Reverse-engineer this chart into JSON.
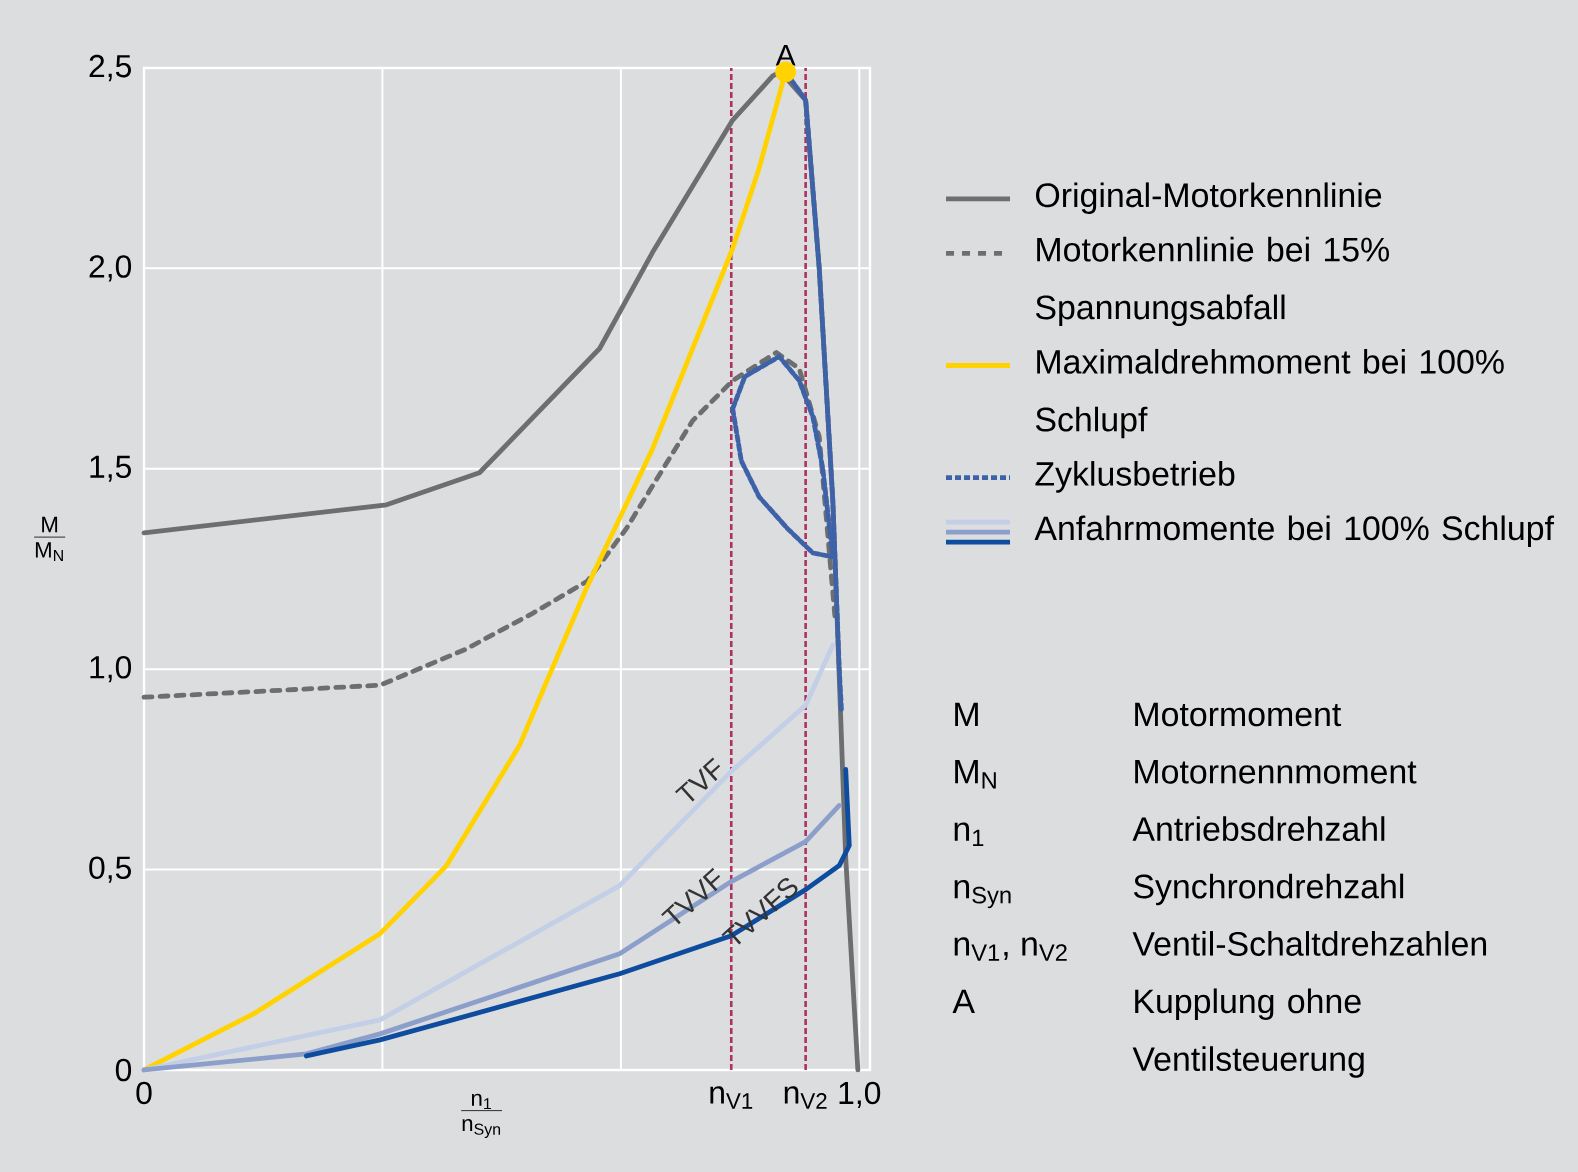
{
  "chart_data": {
    "type": "line",
    "xlabel": "\\frac{\\mathrm{n_1}}{\\mathrm{n_{Syn}}}",
    "ylabel": "\\frac{\\mathrm{M}}{\\mathrm{M_N}}",
    "xlim": [
      0,
      1.015
    ],
    "ylim": [
      0,
      2.5
    ],
    "xticks": [
      0,
      {
        "value": 0.3333,
        "label": null
      },
      {
        "value": 0.6667,
        "label": null
      },
      {
        "value": 1.0,
        "label": "1,0"
      }
    ],
    "yticks": [
      0,
      {
        "value": 0.5,
        "label": "0,5"
      },
      {
        "value": 1.0,
        "label": "1,0"
      },
      {
        "value": 1.5,
        "label": "1,5"
      },
      {
        "value": 2.0,
        "label": "2,0"
      },
      {
        "value": 2.5,
        "label": "2,5"
      }
    ],
    "grid": true,
    "legend": "right",
    "marker": "none",
    "series": [
      {
        "name": "Original-Motorkennlinie",
        "color": "#6d6e70",
        "line_style": "solid",
        "x": [
          0,
          0.339,
          0.469,
          0.637,
          0.711,
          0.823,
          0.879,
          0.89,
          0.925,
          0.944,
          0.963,
          0.972,
          0.981,
          0.998
        ],
        "values": [
          1.34,
          1.41,
          1.49,
          1.8,
          2.04,
          2.37,
          2.48,
          2.49,
          2.42,
          2.0,
          1.42,
          0.98,
          0.53,
          0
        ]
      },
      {
        "name": "Motorkennlinie bei 15% Spannungsabfall",
        "color": "#6d6e70",
        "line_style": "dotted",
        "x": [
          0,
          0.33,
          0.45,
          0.544,
          0.62,
          0.674,
          0.767,
          0.823,
          0.884,
          0.916,
          0.944,
          0.966
        ],
        "values": [
          0.93,
          0.96,
          1.05,
          1.14,
          1.22,
          1.35,
          1.62,
          1.72,
          1.79,
          1.75,
          1.58,
          1.13
        ]
      },
      {
        "name": "Maximaldrehmoment bei 100% Schlupf",
        "color": "#ffd200",
        "line_style": "solid",
        "x": [
          0,
          0.153,
          0.33,
          0.423,
          0.525,
          0.618,
          0.711,
          0.823,
          0.86,
          0.897
        ],
        "values": [
          0,
          0.14,
          0.34,
          0.51,
          0.81,
          1.2,
          1.55,
          2.05,
          2.25,
          2.49
        ]
      },
      {
        "name": "Zyklusbetrieb",
        "color": "#3e62a8",
        "line_style": "dashed",
        "x": [
          0.897,
          0.925,
          0.944,
          0.963,
          0.972,
          0.975
        ],
        "values": [
          2.49,
          2.42,
          2.0,
          1.42,
          1.0,
          0.9
        ]
      },
      {
        "color": "#3e62a8",
        "line_style": "dashed",
        "x": [
          0.823,
          0.84,
          0.888,
          0.916,
          0.935,
          0.949,
          0.963
        ],
        "values": [
          1.65,
          1.73,
          1.78,
          1.72,
          1.63,
          1.5,
          1.28
        ]
      },
      {
        "color": "#3e62a8",
        "line_style": "dashed",
        "x": [
          0.823,
          0.835,
          0.86,
          0.9,
          0.935,
          0.963
        ],
        "values": [
          1.65,
          1.52,
          1.43,
          1.35,
          1.29,
          1.28
        ]
      },
      {
        "name": "TVF",
        "color": "#c3cfe6",
        "line_style": "solid",
        "x": [
          0,
          0.33,
          0.665,
          0.821,
          0.925,
          0.963
        ],
        "values": [
          0,
          0.125,
          0.46,
          0.745,
          0.91,
          1.06
        ]
      },
      {
        "name": "TVVF",
        "color": "#8c9fcb",
        "line_style": "solid",
        "x": [
          0,
          0.227,
          0.33,
          0.665,
          0.821,
          0.925,
          0.972
        ],
        "values": [
          0,
          0.04,
          0.09,
          0.29,
          0.47,
          0.57,
          0.66
        ]
      },
      {
        "name": "TVVFS",
        "color": "#0d4c9e",
        "line_style": "solid",
        "x": [
          0.227,
          0.33,
          0.665,
          0.821,
          0.925,
          0.972,
          0.986,
          0.981
        ],
        "values": [
          0.035,
          0.075,
          0.24,
          0.335,
          0.45,
          0.51,
          0.56,
          0.75
        ]
      },
      {
        "type": "scatter",
        "marker": "circle",
        "color": "#ffd200",
        "x": [
          0.897
        ],
        "values": [
          2.49
        ]
      }
    ],
    "ref_lines": [
      {
        "axis": "x",
        "value": 0.821,
        "label": "n$_{V1}$",
        "color": "#b03060",
        "line_style": "dashed"
      },
      {
        "axis": "x",
        "value": 0.925,
        "label": "n$_{V2}$",
        "color": "#b03060",
        "line_style": "dashed"
      }
    ],
    "annotations": [
      {
        "text": "A",
        "x": 0.897,
        "y": 2.49
      },
      "Anfahrmomente bei 100% Schlupf",
      "M",
      "Motormoment",
      "M$_{N}$",
      "Motornennmoment",
      "n$_{1}$",
      "Antriebsdrehzahl",
      "n$_{Syn}$",
      "Synchrondrehzahl",
      "n$_{V1}$, n$_{V2}$",
      "Ventil-Schaltdrehzahlen",
      "A",
      "Kupplung ohne Ventilsteuerung"
    ]
  }
}
